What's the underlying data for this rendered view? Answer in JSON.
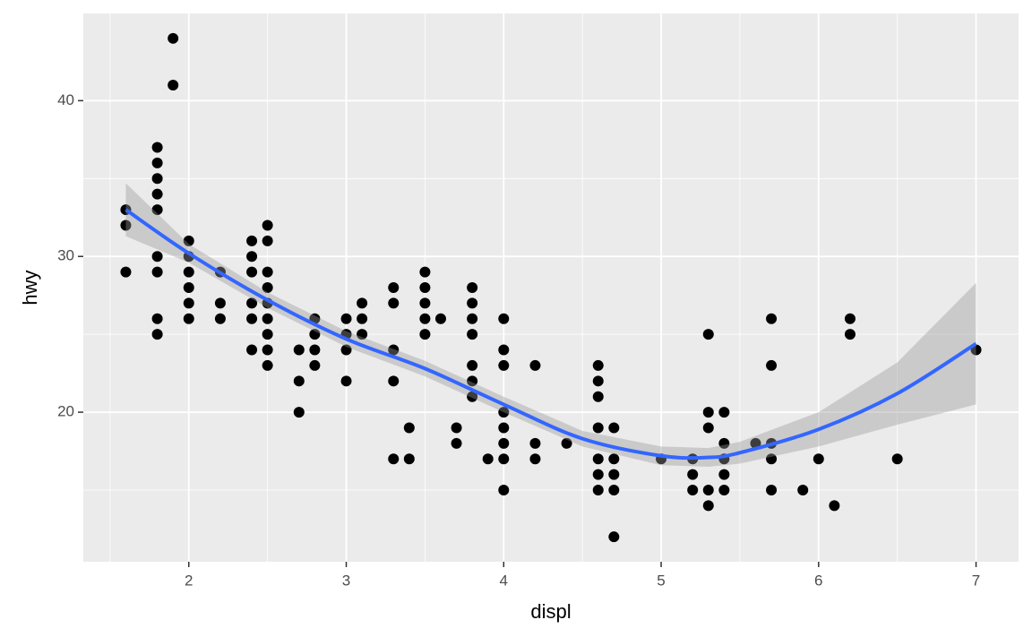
{
  "chart_data": {
    "type": "scatter",
    "x_label": "displ",
    "y_label": "hwy",
    "xlim": [
      1.33,
      7.27
    ],
    "ylim": [
      10.4,
      45.6
    ],
    "xticks": [
      2,
      3,
      4,
      5,
      6,
      7
    ],
    "yticks": [
      20,
      30,
      40
    ],
    "x_minor_breaks": [
      1.5,
      2.5,
      3.5,
      4.5,
      5.5,
      6.5
    ],
    "y_minor_breaks": [
      15,
      25,
      35
    ],
    "grid": true,
    "panel_color": "#ebebeb",
    "point_color": "#000000",
    "x": [
      1.6,
      1.6,
      1.6,
      1.8,
      1.8,
      1.8,
      1.8,
      1.8,
      1.8,
      1.8,
      1.8,
      1.8,
      1.9,
      1.9,
      2.0,
      2.0,
      2.0,
      2.0,
      2.0,
      2.0,
      2.2,
      2.2,
      2.2,
      2.4,
      2.4,
      2.4,
      2.4,
      2.4,
      2.4,
      2.5,
      2.5,
      2.5,
      2.5,
      2.5,
      2.5,
      2.5,
      2.5,
      2.5,
      2.7,
      2.7,
      2.7,
      2.8,
      2.8,
      2.8,
      2.8,
      3.0,
      3.0,
      3.0,
      3.0,
      3.1,
      3.1,
      3.1,
      3.3,
      3.3,
      3.3,
      3.3,
      3.3,
      3.4,
      3.4,
      3.5,
      3.5,
      3.5,
      3.5,
      3.5,
      3.6,
      3.7,
      3.7,
      3.8,
      3.8,
      3.8,
      3.8,
      3.8,
      3.8,
      3.8,
      3.9,
      4.0,
      4.0,
      4.0,
      4.0,
      4.0,
      4.0,
      4.0,
      4.0,
      4.2,
      4.2,
      4.2,
      4.4,
      4.6,
      4.6,
      4.6,
      4.6,
      4.6,
      4.6,
      4.6,
      4.7,
      4.7,
      4.7,
      4.7,
      4.7,
      5.0,
      5.2,
      5.2,
      5.2,
      5.3,
      5.3,
      5.3,
      5.3,
      5.3,
      5.4,
      5.4,
      5.4,
      5.4,
      5.4,
      5.6,
      5.7,
      5.7,
      5.7,
      5.7,
      5.7,
      5.9,
      6.0,
      6.1,
      6.2,
      6.2,
      6.5,
      7.0
    ],
    "values": [
      33,
      32,
      29,
      37,
      36,
      35,
      34,
      33,
      30,
      29,
      26,
      25,
      44,
      41,
      31,
      30,
      29,
      28,
      27,
      26,
      29,
      27,
      26,
      31,
      30,
      29,
      27,
      26,
      24,
      32,
      31,
      29,
      28,
      27,
      26,
      25,
      24,
      23,
      24,
      22,
      20,
      26,
      25,
      24,
      23,
      26,
      25,
      24,
      22,
      27,
      26,
      25,
      28,
      27,
      24,
      22,
      17,
      19,
      17,
      29,
      28,
      27,
      26,
      25,
      26,
      19,
      18,
      28,
      27,
      26,
      25,
      23,
      22,
      21,
      17,
      26,
      24,
      23,
      20,
      19,
      18,
      17,
      15,
      23,
      18,
      17,
      18,
      23,
      22,
      21,
      19,
      17,
      16,
      15,
      19,
      17,
      16,
      15,
      12,
      17,
      17,
      16,
      15,
      25,
      20,
      19,
      15,
      14,
      20,
      18,
      17,
      16,
      15,
      18,
      26,
      23,
      18,
      17,
      15,
      15,
      17,
      14,
      26,
      25,
      17,
      24
    ],
    "smooth": {
      "color": "#3366ff",
      "band_color": "#999999",
      "x": [
        1.6,
        2.0,
        2.5,
        3.0,
        3.5,
        4.0,
        4.5,
        5.0,
        5.3,
        5.5,
        6.0,
        6.5,
        7.0
      ],
      "values": [
        33.0,
        30.2,
        27.2,
        24.7,
        22.8,
        20.5,
        18.3,
        17.2,
        17.1,
        17.4,
        18.9,
        21.2,
        24.4
      ],
      "lower": [
        31.3,
        29.6,
        26.7,
        24.2,
        22.3,
        20.0,
        17.8,
        16.6,
        16.5,
        16.7,
        17.8,
        19.2,
        20.5
      ],
      "upper": [
        34.7,
        30.8,
        27.7,
        25.2,
        23.3,
        21.0,
        18.8,
        17.8,
        17.7,
        18.1,
        20.0,
        23.2,
        28.3
      ]
    }
  }
}
